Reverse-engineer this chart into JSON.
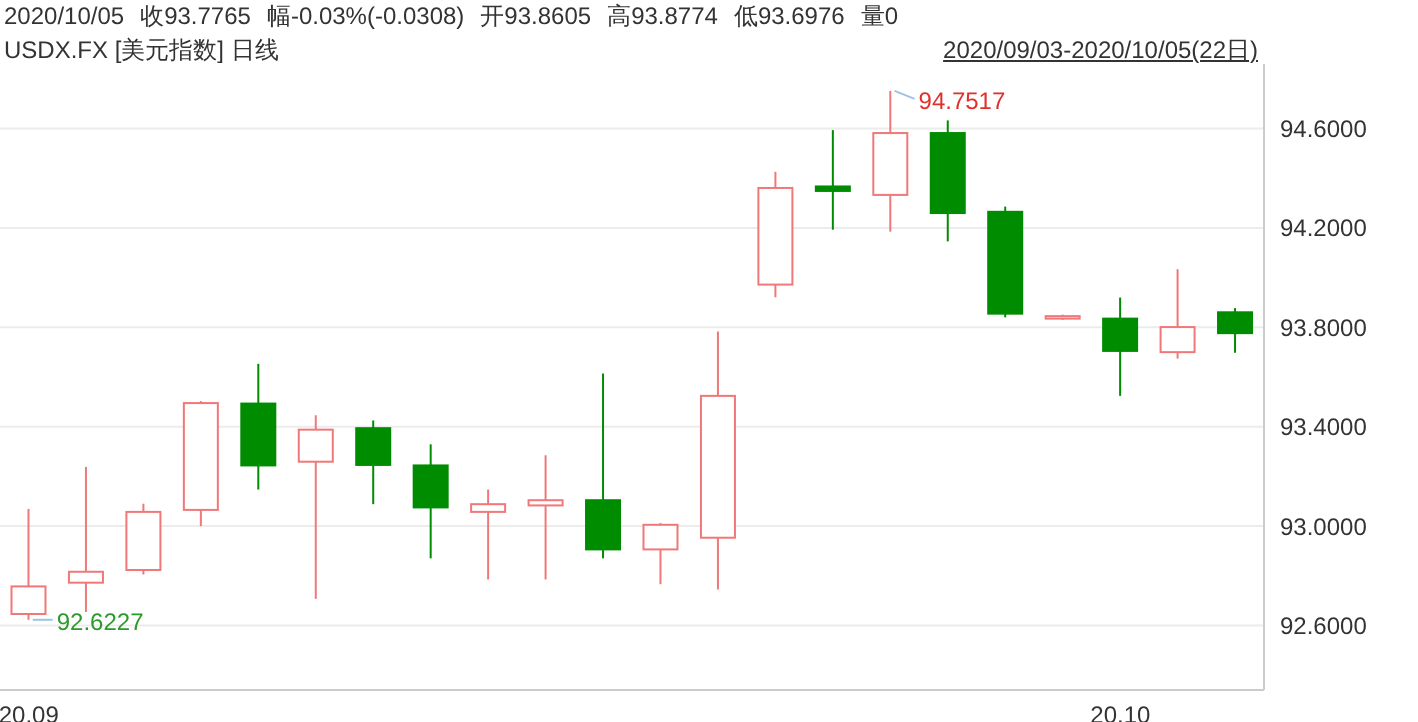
{
  "chart_data": {
    "type": "candlestick",
    "title": "USDX.FX [美元指数] 日线",
    "subtitle": "2020/09/03-2020/10/05(22日)",
    "annotations": [
      "2020/10/05",
      "收93.7765",
      "幅-0.03%(-0.0308)",
      "开93.8605",
      "高93.8774",
      "低93.6976",
      "量0",
      "94.7517",
      "92.6227"
    ],
    "categories": [
      "20.09",
      null,
      null,
      null,
      null,
      null,
      null,
      null,
      null,
      null,
      null,
      null,
      null,
      null,
      null,
      null,
      null,
      null,
      null,
      "20.10",
      null,
      null
    ],
    "ohlc": [
      [
        92.646,
        93.069,
        92.6227,
        92.757
      ],
      [
        92.772,
        93.238,
        92.654,
        92.816
      ],
      [
        92.823,
        93.09,
        92.805,
        93.057
      ],
      [
        93.065,
        93.503,
        93.0,
        93.495
      ],
      [
        93.493,
        93.653,
        93.147,
        93.244
      ],
      [
        93.259,
        93.446,
        92.707,
        93.388
      ],
      [
        93.394,
        93.425,
        93.088,
        93.246
      ],
      [
        93.244,
        93.329,
        92.87,
        93.075
      ],
      [
        93.057,
        93.147,
        92.785,
        93.088
      ],
      [
        93.083,
        93.285,
        92.785,
        93.104
      ],
      [
        93.104,
        93.614,
        92.87,
        92.906
      ],
      [
        92.906,
        93.012,
        92.766,
        93.005
      ],
      [
        92.953,
        93.783,
        92.745,
        93.524
      ],
      [
        93.972,
        94.426,
        93.921,
        94.361
      ],
      [
        94.367,
        94.594,
        94.193,
        94.349
      ],
      [
        94.333,
        94.7517,
        94.185,
        94.582
      ],
      [
        94.582,
        94.633,
        94.146,
        94.26
      ],
      [
        94.265,
        94.286,
        93.84,
        93.855
      ],
      [
        93.835,
        93.851,
        93.83,
        93.845
      ],
      [
        93.835,
        93.92,
        93.524,
        93.705
      ],
      [
        93.7,
        94.034,
        93.674,
        93.801
      ],
      [
        93.8605,
        93.8774,
        93.6976,
        93.7765
      ]
    ],
    "colors": [
      "#f07878",
      "#f07878",
      "#f07878",
      "#f07878",
      "#008c00",
      "#f07878",
      "#008c00",
      "#008c00",
      "#f07878",
      "#f07878",
      "#008c00",
      "#f07878",
      "#f07878",
      "#f07878",
      "#008c00",
      "#f07878",
      "#008c00",
      "#008c00",
      "#f07878",
      "#008c00",
      "#f07878",
      "#008c00"
    ],
    "ylim": [
      92.34,
      94.86
    ],
    "yticks": [
      {
        "value": 92.6,
        "label": "92.6000"
      },
      {
        "value": 93.0,
        "label": "93.0000"
      },
      {
        "value": 93.4,
        "label": "93.4000"
      },
      {
        "value": 93.8,
        "label": "93.8000"
      },
      {
        "value": 94.2,
        "label": "94.2000"
      },
      {
        "value": 94.6,
        "label": "94.6000"
      }
    ],
    "grid": "y"
  }
}
